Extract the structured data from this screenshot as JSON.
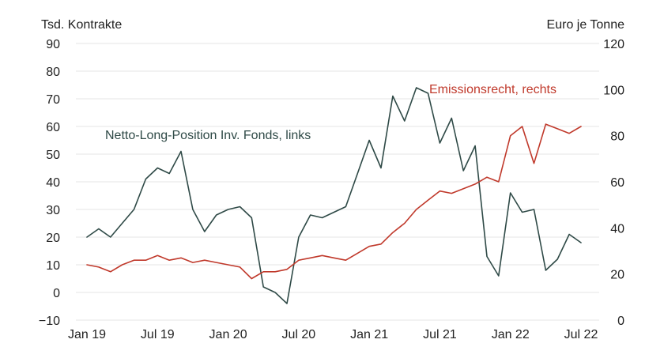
{
  "chart_data": {
    "type": "line",
    "left_unit": "Tsd. Kontrakte",
    "right_unit": "Euro je Tonne",
    "left_ylim": [
      -10,
      90
    ],
    "left_ticks": [
      90,
      80,
      70,
      60,
      50,
      40,
      30,
      20,
      10,
      0,
      -10
    ],
    "left_tick_labels": [
      "90",
      "80",
      "70",
      "60",
      "50",
      "40",
      "30",
      "20",
      "10",
      "0",
      "−10"
    ],
    "right_ylim": [
      0,
      120
    ],
    "right_ticks": [
      120,
      100,
      80,
      60,
      40,
      20,
      0
    ],
    "right_tick_labels": [
      "120",
      "100",
      "80",
      "60",
      "40",
      "20",
      "0"
    ],
    "x_ticks": [
      "Jan 19",
      "Jul 19",
      "Jan 20",
      "Jul 20",
      "Jan 21",
      "Jul 21",
      "Jan 22",
      "Jul 22"
    ],
    "x_range": [
      "2019-01",
      "2022-07"
    ],
    "grid": true,
    "series": [
      {
        "name": "Netto-Long-Position Inv. Fonds, links",
        "axis": "left",
        "color": "#2f4a47",
        "x": [
          "2019-01",
          "2019-02",
          "2019-03",
          "2019-04",
          "2019-05",
          "2019-06",
          "2019-07",
          "2019-08",
          "2019-09",
          "2019-10",
          "2019-11",
          "2019-12",
          "2020-01",
          "2020-02",
          "2020-03",
          "2020-04",
          "2020-05",
          "2020-06",
          "2020-07",
          "2020-08",
          "2020-09",
          "2020-10",
          "2020-11",
          "2020-12",
          "2021-01",
          "2021-02",
          "2021-03",
          "2021-04",
          "2021-05",
          "2021-06",
          "2021-07",
          "2021-08",
          "2021-09",
          "2021-10",
          "2021-11",
          "2021-12",
          "2022-01",
          "2022-02",
          "2022-03",
          "2022-04",
          "2022-05",
          "2022-06",
          "2022-07"
        ],
        "values": [
          20,
          23,
          20,
          25,
          30,
          41,
          45,
          43,
          51,
          30,
          22,
          28,
          30,
          31,
          27,
          2,
          0,
          -4,
          20,
          28,
          27,
          29,
          31,
          43,
          55,
          45,
          71,
          62,
          74,
          72,
          54,
          63,
          44,
          53,
          13,
          6,
          36,
          29,
          30,
          8,
          12,
          21,
          18
        ]
      },
      {
        "name": "Emissionsrecht, rechts",
        "axis": "right",
        "color": "#c0392b",
        "x": [
          "2019-01",
          "2019-02",
          "2019-03",
          "2019-04",
          "2019-05",
          "2019-06",
          "2019-07",
          "2019-08",
          "2019-09",
          "2019-10",
          "2019-11",
          "2019-12",
          "2020-01",
          "2020-02",
          "2020-03",
          "2020-04",
          "2020-05",
          "2020-06",
          "2020-07",
          "2020-08",
          "2020-09",
          "2020-10",
          "2020-11",
          "2020-12",
          "2021-01",
          "2021-02",
          "2021-03",
          "2021-04",
          "2021-05",
          "2021-06",
          "2021-07",
          "2021-08",
          "2021-09",
          "2021-10",
          "2021-11",
          "2021-12",
          "2022-01",
          "2022-02",
          "2022-03",
          "2022-04",
          "2022-05",
          "2022-06",
          "2022-07"
        ],
        "values": [
          24,
          23,
          21,
          24,
          26,
          26,
          28,
          26,
          27,
          25,
          26,
          25,
          24,
          23,
          18,
          21,
          21,
          22,
          26,
          27,
          28,
          27,
          26,
          29,
          32,
          33,
          38,
          42,
          48,
          52,
          56,
          55,
          57,
          59,
          62,
          60,
          80,
          84,
          68,
          85,
          83,
          81,
          84
        ]
      }
    ],
    "annotations": [
      "Netto-Long-Position Inv. Fonds, links",
      "Emissionsrecht, rechts"
    ]
  }
}
